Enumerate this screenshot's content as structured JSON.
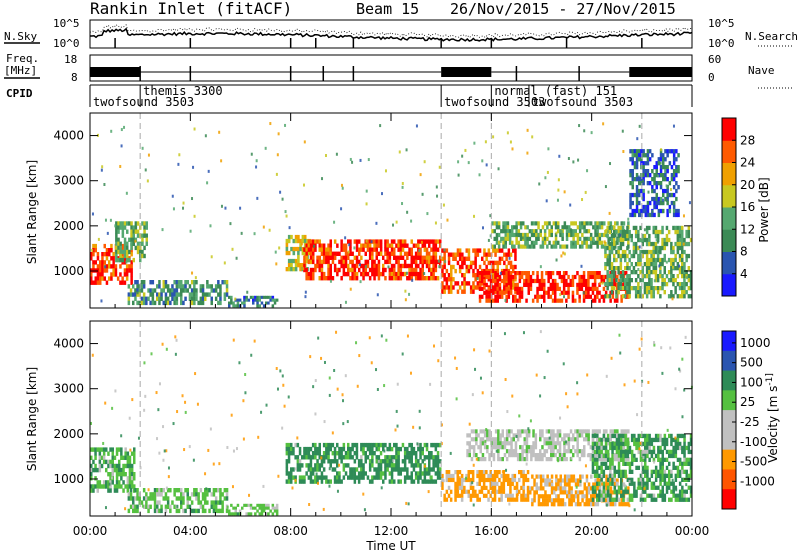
{
  "header": {
    "station": "Rankin Inlet (fitACF)",
    "beam": "Beam 15",
    "dates": "26/Nov/2015 - 27/Nov/2015"
  },
  "strip": {
    "nsky_label": "N.Sky",
    "nsky_tick_top": "10^5",
    "nsky_tick_bottom": "10^0",
    "nsearch_label": "N.Search",
    "nsearch_tick_top": "10^5",
    "nsearch_tick_bottom": "10^0",
    "freq_label_1": "Freq.",
    "freq_label_2": "[MHz]",
    "freq_tick_top": "18",
    "freq_tick_bottom": "8",
    "nave_label": "Nave",
    "nave_tick_top": "60",
    "nave_tick_bottom": "0",
    "cpid_label": "CPID"
  },
  "cpid_segments": [
    {
      "label": "twofsound 3503",
      "start_h": 0.0,
      "end_h": 2.0,
      "row": 2
    },
    {
      "label": "themis 3300",
      "start_h": 2.0,
      "end_h": 14.0,
      "row": 1
    },
    {
      "label": "twofsound 3503",
      "start_h": 14.0,
      "end_h": 16.0,
      "row": 2
    },
    {
      "label": "normal (fast) 151",
      "start_h": 16.0,
      "end_h": 17.5,
      "row": 1
    },
    {
      "label": "twofsound 3503",
      "start_h": 17.5,
      "end_h": 24.0,
      "row": 2
    }
  ],
  "colors": {
    "power": [
      "#1a1aff",
      "#2a55b0",
      "#3b8a55",
      "#55a870",
      "#c8c820",
      "#f0a000",
      "#ff5a00",
      "#ff0000"
    ],
    "velocity": [
      "#ff0000",
      "#ff5500",
      "#ff9900",
      "#c0c0c0",
      "#c0c0c0",
      "#55c040",
      "#2e8b57",
      "#2a55b0",
      "#1a1aff"
    ]
  },
  "chart_data": [
    {
      "type": "heatmap",
      "name": "Power",
      "xlabel": "",
      "ylabel": "Slant Range [km]",
      "xlim": [
        0,
        24
      ],
      "ylim": [
        180,
        4500
      ],
      "x_ticks": [
        "00:00",
        "04:00",
        "08:00",
        "12:00",
        "16:00",
        "20:00",
        "00:00"
      ],
      "y_ticks": [
        1000,
        2000,
        3000,
        4000
      ],
      "colorbar_label": "Power [dB]",
      "colorbar_ticks": [
        4,
        8,
        12,
        16,
        20,
        24,
        28
      ],
      "regions": [
        {
          "t0": 0.0,
          "t1": 1.7,
          "r0": 700,
          "r1": 1600,
          "value": 26
        },
        {
          "t0": 1.0,
          "t1": 2.3,
          "r0": 1200,
          "r1": 2100,
          "value": 14
        },
        {
          "t0": 1.5,
          "t1": 5.5,
          "r0": 250,
          "r1": 800,
          "value": 12
        },
        {
          "t0": 5.5,
          "t1": 7.5,
          "r0": 200,
          "r1": 450,
          "value": 10
        },
        {
          "t0": 7.8,
          "t1": 8.8,
          "r0": 1000,
          "r1": 1800,
          "value": 18
        },
        {
          "t0": 8.5,
          "t1": 14.0,
          "r0": 800,
          "r1": 1700,
          "value": 27
        },
        {
          "t0": 14.0,
          "t1": 17.0,
          "r0": 500,
          "r1": 1500,
          "value": 26
        },
        {
          "t0": 15.5,
          "t1": 21.5,
          "r0": 300,
          "r1": 1000,
          "value": 28
        },
        {
          "t0": 16.0,
          "t1": 21.5,
          "r0": 1500,
          "r1": 2100,
          "value": 14
        },
        {
          "t0": 20.5,
          "t1": 24.0,
          "r0": 400,
          "r1": 2000,
          "value": 14
        },
        {
          "t0": 21.5,
          "t1": 23.5,
          "r0": 2200,
          "r1": 3700,
          "value": 8
        }
      ]
    },
    {
      "type": "heatmap",
      "name": "Velocity",
      "xlabel": "Time UT",
      "ylabel": "Slant Range [km]",
      "xlim": [
        0,
        24
      ],
      "ylim": [
        180,
        4500
      ],
      "x_ticks": [
        "00:00",
        "04:00",
        "08:00",
        "12:00",
        "16:00",
        "20:00",
        "00:00"
      ],
      "y_ticks": [
        1000,
        2000,
        3000,
        4000
      ],
      "colorbar_label": "Velocity [m s^-1]",
      "colorbar_ticks": [
        "1000",
        "500",
        "100",
        "25",
        "-25",
        "-100",
        "-500",
        "-1000"
      ],
      "regions": [
        {
          "t0": 0.0,
          "t1": 1.8,
          "r0": 700,
          "r1": 1700,
          "value": 80
        },
        {
          "t0": 1.5,
          "t1": 5.5,
          "r0": 250,
          "r1": 800,
          "value": 60
        },
        {
          "t0": 5.5,
          "t1": 7.5,
          "r0": 200,
          "r1": 450,
          "value": 40
        },
        {
          "t0": 7.8,
          "t1": 14.0,
          "r0": 900,
          "r1": 1800,
          "value": 200
        },
        {
          "t0": 14.0,
          "t1": 17.5,
          "r0": 500,
          "r1": 1200,
          "value": -200
        },
        {
          "t0": 15.0,
          "t1": 21.5,
          "r0": 1400,
          "r1": 2100,
          "value": 0
        },
        {
          "t0": 17.5,
          "t1": 21.5,
          "r0": 400,
          "r1": 1100,
          "value": -150
        },
        {
          "t0": 20.0,
          "t1": 24.0,
          "r0": 500,
          "r1": 2000,
          "value": 120
        }
      ]
    }
  ]
}
